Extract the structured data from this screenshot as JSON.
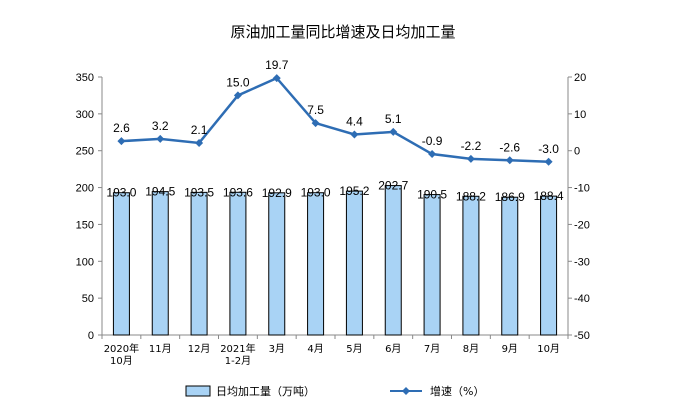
{
  "chart_data": {
    "type": "bar+line",
    "title": "原油加工量同比增速及日均加工量",
    "categories": [
      [
        "2020年",
        "10月"
      ],
      [
        "11月"
      ],
      [
        "12月"
      ],
      [
        "2021年",
        "1-2月"
      ],
      [
        "3月"
      ],
      [
        "4月"
      ],
      [
        "5月"
      ],
      [
        "6月"
      ],
      [
        "7月"
      ],
      [
        "8月"
      ],
      [
        "9月"
      ],
      [
        "10月"
      ]
    ],
    "series": [
      {
        "name": "日均加工量（万吨）",
        "type": "bar",
        "axis": "left",
        "color": "#a9d3f5",
        "values": [
          193.0,
          194.5,
          193.5,
          193.6,
          192.9,
          193.0,
          195.2,
          202.7,
          190.5,
          188.2,
          186.9,
          188.4
        ],
        "labels": [
          "193.0",
          "194.5",
          "193.5",
          "193.6",
          "192.9",
          "193.0",
          "195.2",
          "202.7",
          "190.5",
          "188.2",
          "186.9",
          "188.4"
        ]
      },
      {
        "name": "增速（%）",
        "type": "line",
        "axis": "right",
        "color": "#2e6db4",
        "values": [
          2.6,
          3.2,
          2.1,
          15.0,
          19.7,
          7.5,
          4.4,
          5.1,
          -0.9,
          -2.2,
          -2.6,
          -3.0
        ],
        "labels": [
          "2.6",
          "3.2",
          "2.1",
          "15.0",
          "19.7",
          "7.5",
          "4.4",
          "5.1",
          "-0.9",
          "-2.2",
          "-2.6",
          "-3.0"
        ]
      }
    ],
    "y_left": {
      "min": 0,
      "max": 350,
      "step": 50,
      "ticks": [
        "0",
        "50",
        "100",
        "150",
        "200",
        "250",
        "300",
        "350"
      ]
    },
    "y_right": {
      "min": -50,
      "max": 20,
      "step": 10,
      "ticks": [
        "-50",
        "-40",
        "-30",
        "-20",
        "-10",
        "0",
        "10",
        "20"
      ]
    },
    "grid": false,
    "legend_position": "bottom"
  }
}
